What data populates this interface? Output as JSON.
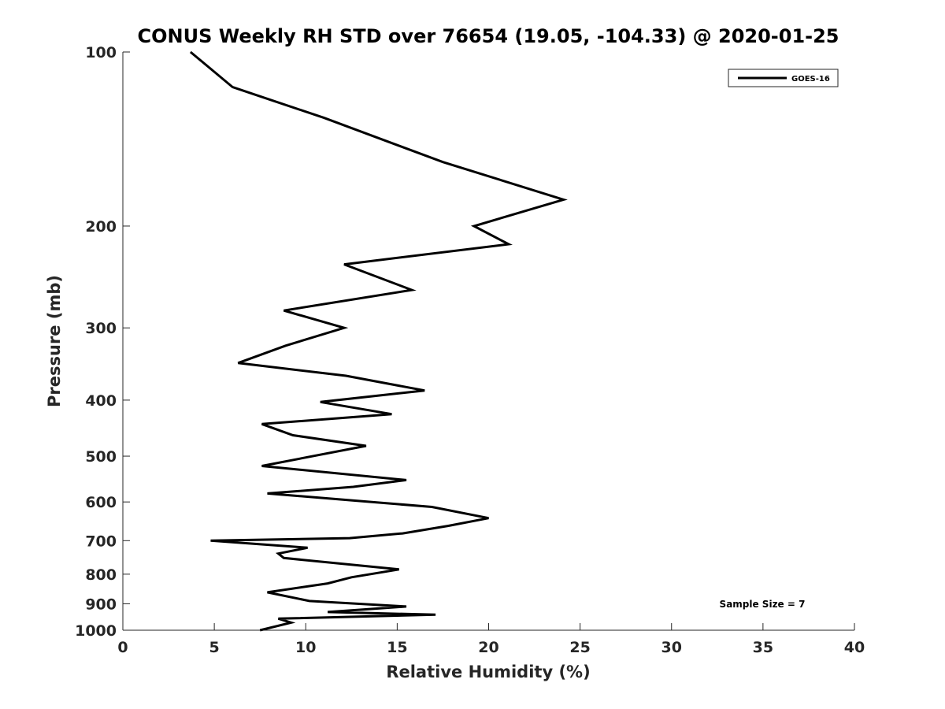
{
  "chart_data": {
    "type": "line",
    "title": "CONUS Weekly RH STD over 76654 (19.05, -104.33) @ 2020-01-25",
    "xlabel": "Relative Humidity (%)",
    "ylabel": "Pressure (mb)",
    "xlim": [
      0,
      40
    ],
    "ylim": [
      100,
      1000
    ],
    "yscale": "log",
    "y_reversed": true,
    "grid": false,
    "legend_position": "top-right",
    "xticks": [
      0,
      5,
      10,
      15,
      20,
      25,
      30,
      35,
      40
    ],
    "xtick_labels": [
      "0",
      "5",
      "10",
      "15",
      "20",
      "25",
      "30",
      "35",
      "40"
    ],
    "yticks": [
      100,
      200,
      300,
      400,
      500,
      600,
      700,
      800,
      900,
      1000
    ],
    "ytick_labels": [
      "100",
      "200",
      "300",
      "400",
      "500",
      "600",
      "700",
      "800",
      "900",
      "1000"
    ],
    "annotation": "Sample Size = 7",
    "series": [
      {
        "name": "GOES-16",
        "color": "#000000",
        "points": [
          [
            3.7,
            100
          ],
          [
            6.0,
            115
          ],
          [
            11.0,
            130
          ],
          [
            17.5,
            155
          ],
          [
            24.1,
            180
          ],
          [
            19.2,
            200
          ],
          [
            21.1,
            215
          ],
          [
            12.1,
            233
          ],
          [
            15.8,
            258
          ],
          [
            8.8,
            280
          ],
          [
            12.1,
            300
          ],
          [
            8.9,
            322
          ],
          [
            6.3,
            345
          ],
          [
            12.2,
            363
          ],
          [
            16.5,
            385
          ],
          [
            10.8,
            403
          ],
          [
            14.7,
            423
          ],
          [
            7.6,
            440
          ],
          [
            9.3,
            460
          ],
          [
            13.3,
            480
          ],
          [
            7.6,
            520
          ],
          [
            15.5,
            550
          ],
          [
            12.6,
            565
          ],
          [
            7.9,
            580
          ],
          [
            16.9,
            612
          ],
          [
            20.0,
            640
          ],
          [
            17.8,
            660
          ],
          [
            15.3,
            680
          ],
          [
            12.4,
            693
          ],
          [
            4.8,
            700
          ],
          [
            10.1,
            720
          ],
          [
            8.5,
            737
          ],
          [
            8.8,
            750
          ],
          [
            15.1,
            785
          ],
          [
            12.5,
            810
          ],
          [
            11.2,
            830
          ],
          [
            7.9,
            860
          ],
          [
            10.2,
            890
          ],
          [
            15.5,
            910
          ],
          [
            11.2,
            930
          ],
          [
            17.1,
            940
          ],
          [
            8.5,
            955
          ],
          [
            9.2,
            970
          ],
          [
            7.5,
            1000
          ]
        ]
      }
    ]
  }
}
